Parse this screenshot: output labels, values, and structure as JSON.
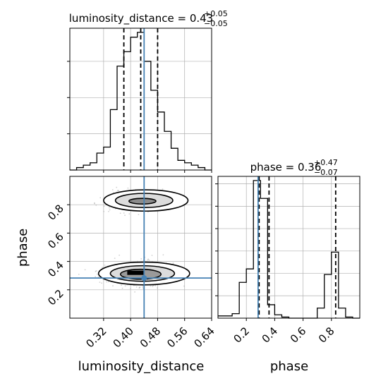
{
  "chart_data": {
    "type": "corner",
    "parameters": [
      "luminosity_distance",
      "phase"
    ],
    "truths": {
      "luminosity_distance": 0.44,
      "phase": 0.283
    },
    "titles": [
      {
        "param": "luminosity_distance",
        "prefix": "luminosity_distance = ",
        "value": "0.43",
        "plus": "+0.05",
        "minus": "−0.05"
      },
      {
        "param": "phase",
        "prefix": "phase = ",
        "value": "0.36",
        "plus": "+0.47",
        "minus": "−0.07"
      }
    ],
    "axes": {
      "luminosity_distance": {
        "range": [
          0.22,
          0.64
        ],
        "ticks": [
          "0.32",
          "0.40",
          "0.48",
          "0.56",
          "0.64"
        ],
        "tick_values": [
          0.32,
          0.4,
          0.48,
          0.56,
          0.64
        ]
      },
      "phase": {
        "range": [
          0.0,
          1.0
        ],
        "ticks": [
          "0.2",
          "0.4",
          "0.6",
          "0.8"
        ],
        "tick_values": [
          0.2,
          0.4,
          0.6,
          0.8
        ]
      }
    },
    "xlabel_left": "luminosity_distance",
    "xlabel_right": "phase",
    "ylabel": "phase",
    "hist_luminosity_distance": {
      "bin_edges": [
        0.22,
        0.24,
        0.26,
        0.28,
        0.3,
        0.32,
        0.34,
        0.36,
        0.38,
        0.4,
        0.42,
        0.44,
        0.46,
        0.48,
        0.5,
        0.52,
        0.54,
        0.56,
        0.58,
        0.6,
        0.62,
        0.64
      ],
      "counts": [
        0,
        2,
        4,
        6,
        14,
        19,
        50,
        86,
        98,
        110,
        114,
        90,
        66,
        48,
        32,
        18,
        8,
        6,
        4,
        2,
        0
      ],
      "quantiles": [
        0.38,
        0.43,
        0.48
      ]
    },
    "hist_phase": {
      "bin_edges": [
        0.0,
        0.05,
        0.1,
        0.15,
        0.2,
        0.25,
        0.3,
        0.35,
        0.4,
        0.45,
        0.5,
        0.55,
        0.6,
        0.65,
        0.7,
        0.75,
        0.8,
        0.85,
        0.9,
        0.95,
        1.0
      ],
      "counts": [
        2,
        2,
        4,
        32,
        44,
        123,
        107,
        12,
        3,
        1,
        0,
        0,
        0,
        0,
        9,
        39,
        59,
        9,
        1,
        0
      ],
      "quantiles": [
        0.29,
        0.36,
        0.83
      ]
    },
    "grid": true
  }
}
